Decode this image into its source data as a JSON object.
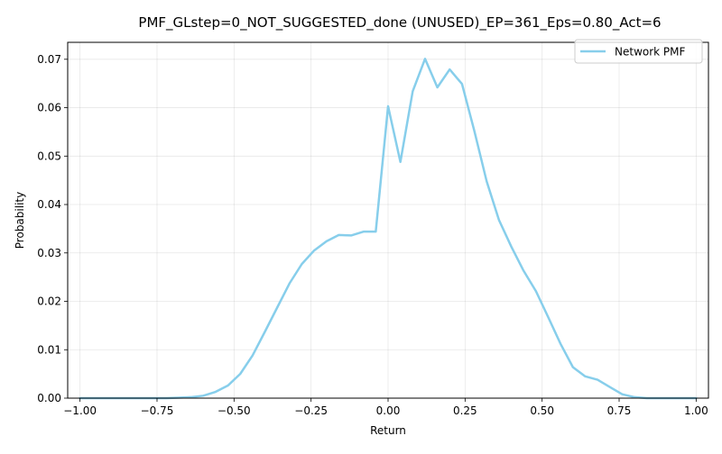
{
  "chart_data": {
    "type": "line",
    "title": "PMF_GLstep=0_NOT_SUGGESTED_done (UNUSED)_EP=361_Eps=0.80_Act=6",
    "xlabel": "Return",
    "ylabel": "Probability",
    "xlim": [
      -1.04,
      1.04
    ],
    "ylim": [
      0,
      0.0735
    ],
    "x_ticks": [
      -1.0,
      -0.75,
      -0.5,
      -0.25,
      0.0,
      0.25,
      0.5,
      0.75,
      1.0
    ],
    "x_tick_labels": [
      "−1.00",
      "−0.75",
      "−0.50",
      "−0.25",
      "0.00",
      "0.25",
      "0.50",
      "0.75",
      "1.00"
    ],
    "y_ticks": [
      0.0,
      0.01,
      0.02,
      0.03,
      0.04,
      0.05,
      0.06,
      0.07
    ],
    "y_tick_labels": [
      "0.00",
      "0.01",
      "0.02",
      "0.03",
      "0.04",
      "0.05",
      "0.06",
      "0.07"
    ],
    "grid": true,
    "legend_position": "top-right",
    "series": [
      {
        "name": "Network PMF",
        "color": "#87ceeb",
        "x": [
          -1.0,
          -0.96,
          -0.92,
          -0.88,
          -0.84,
          -0.8,
          -0.76,
          -0.72,
          -0.68,
          -0.64,
          -0.6,
          -0.56,
          -0.52,
          -0.48,
          -0.44,
          -0.4,
          -0.36,
          -0.32,
          -0.28,
          -0.24,
          -0.2,
          -0.16,
          -0.12,
          -0.08,
          -0.04,
          0.0,
          0.04,
          0.08,
          0.12,
          0.16,
          0.2,
          0.24,
          0.28,
          0.32,
          0.36,
          0.4,
          0.44,
          0.48,
          0.52,
          0.56,
          0.6,
          0.64,
          0.68,
          0.72,
          0.76,
          0.8,
          0.84,
          0.88,
          0.92,
          0.96,
          1.0
        ],
        "y": [
          0.0,
          0.0,
          0.0,
          0.0,
          0.0,
          0.0,
          0.0,
          0.0,
          0.0001,
          0.0002,
          0.0005,
          0.0013,
          0.0026,
          0.005,
          0.0088,
          0.0137,
          0.0187,
          0.0237,
          0.0277,
          0.0305,
          0.0324,
          0.0337,
          0.0336,
          0.0344,
          0.0344,
          0.0603,
          0.0488,
          0.0634,
          0.0701,
          0.0642,
          0.0679,
          0.0649,
          0.0552,
          0.0448,
          0.0368,
          0.0313,
          0.0263,
          0.0221,
          0.0167,
          0.0112,
          0.0064,
          0.0045,
          0.0038,
          0.0023,
          0.0008,
          0.0002,
          0.0,
          0.0,
          0.0,
          0.0,
          0.0
        ]
      }
    ]
  }
}
